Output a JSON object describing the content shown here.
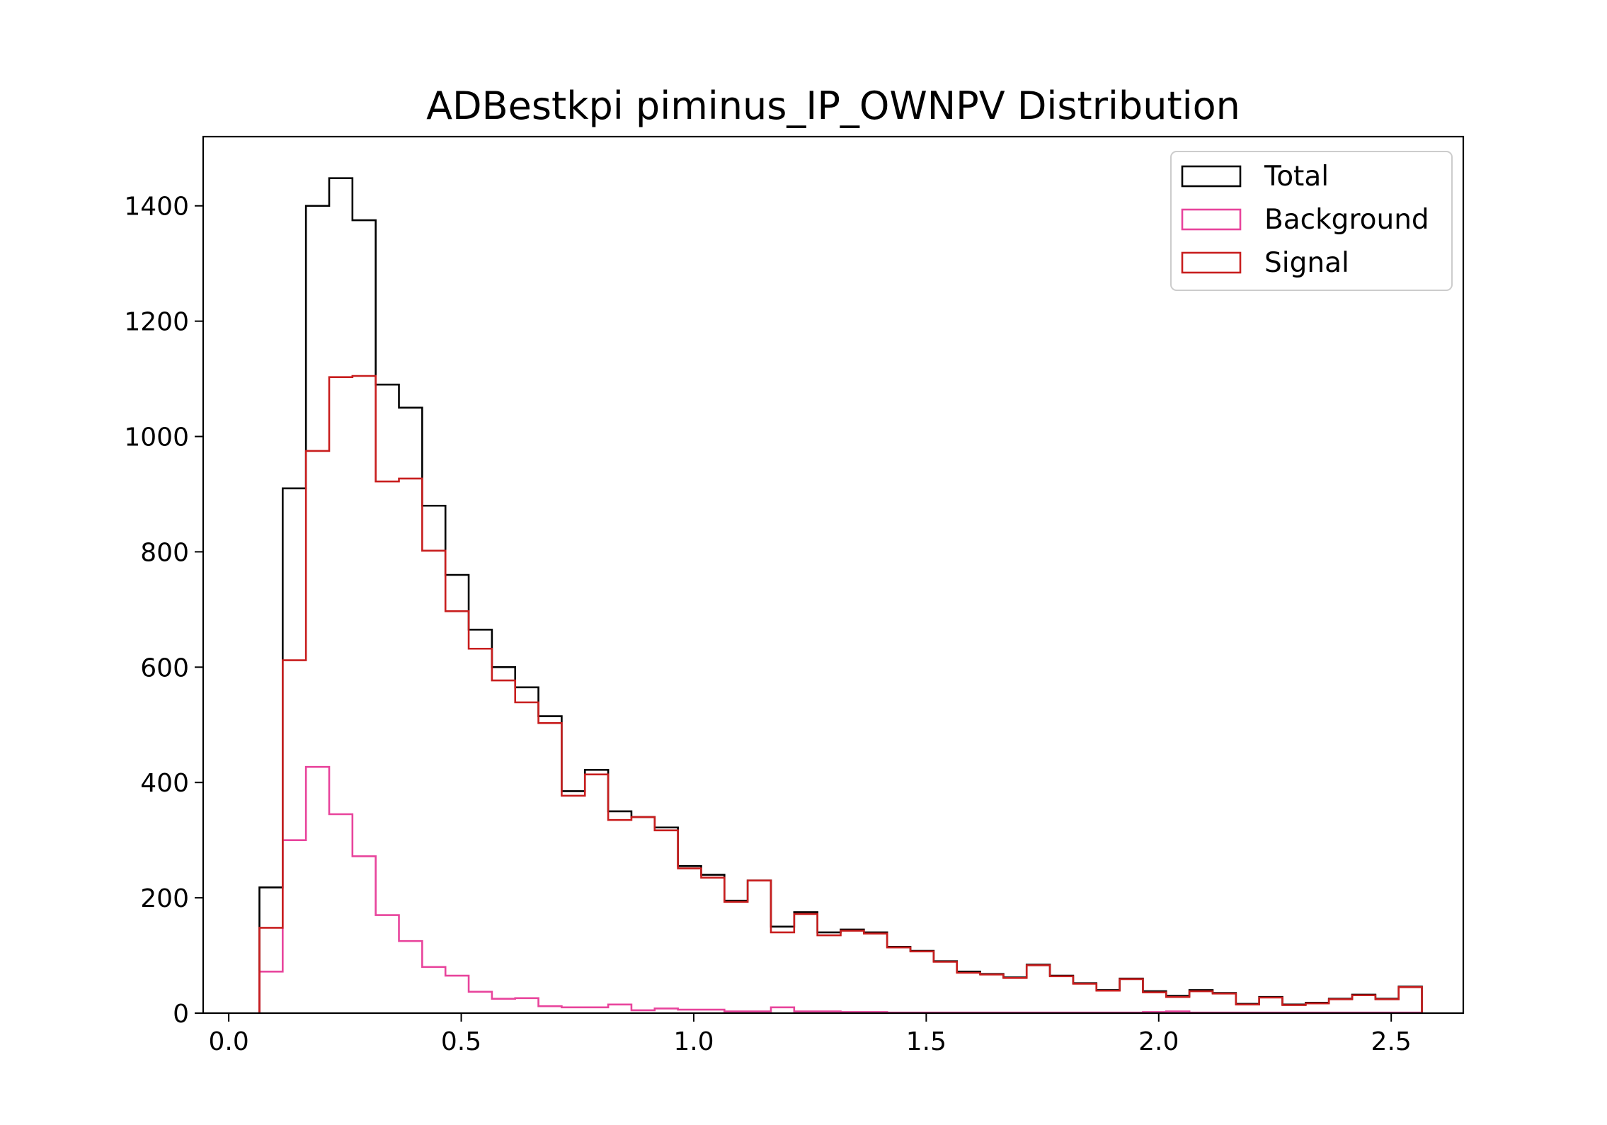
{
  "chart_data": {
    "type": "histogram",
    "title": "ADBestkpi piminus_IP_OWNPV Distribution",
    "xlabel": "",
    "ylabel": "",
    "xlim": [
      -0.055,
      2.655
    ],
    "ylim": [
      0,
      1520
    ],
    "xticks": [
      0.0,
      0.5,
      1.0,
      1.5,
      2.0,
      2.5
    ],
    "xtick_labels": [
      "0.0",
      "0.5",
      "1.0",
      "1.5",
      "2.0",
      "2.5"
    ],
    "yticks": [
      0,
      200,
      400,
      600,
      800,
      1000,
      1200,
      1400
    ],
    "ytick_labels": [
      "0",
      "200",
      "400",
      "600",
      "800",
      "1000",
      "1200",
      "1400"
    ],
    "grid": false,
    "legend_position": "top-right",
    "bin_edges": [
      0.066,
      0.116,
      0.166,
      0.216,
      0.266,
      0.316,
      0.366,
      0.416,
      0.466,
      0.516,
      0.566,
      0.616,
      0.666,
      0.716,
      0.766,
      0.816,
      0.866,
      0.916,
      0.966,
      1.016,
      1.066,
      1.116,
      1.166,
      1.216,
      1.266,
      1.316,
      1.366,
      1.416,
      1.466,
      1.516,
      1.566,
      1.616,
      1.666,
      1.716,
      1.766,
      1.816,
      1.866,
      1.916,
      1.966,
      2.016,
      2.066,
      2.116,
      2.166,
      2.216,
      2.266,
      2.316,
      2.366,
      2.416,
      2.466,
      2.516
    ],
    "series": [
      {
        "name": "Total",
        "color": "#000000",
        "values": [
          218,
          910,
          1400,
          1448,
          1375,
          1090,
          1050,
          880,
          760,
          665,
          600,
          565,
          515,
          385,
          422,
          350,
          340,
          322,
          255,
          240,
          195,
          230,
          150,
          175,
          140,
          145,
          140,
          115,
          108,
          90,
          72,
          68,
          62,
          84,
          65,
          52,
          40,
          60,
          38,
          30,
          40,
          35,
          16,
          28,
          15,
          18,
          25,
          32,
          25,
          46
        ]
      },
      {
        "name": "Background",
        "color": "#e8449c",
        "values": [
          72,
          300,
          427,
          345,
          272,
          170,
          125,
          80,
          65,
          37,
          25,
          26,
          12,
          10,
          10,
          15,
          5,
          8,
          6,
          6,
          3,
          3,
          10,
          3,
          3,
          2,
          2,
          1,
          1,
          1,
          1,
          1,
          1,
          1,
          1,
          1,
          1,
          1,
          2,
          3,
          1,
          1,
          1,
          1,
          1,
          1,
          1,
          1,
          1,
          1
        ]
      },
      {
        "name": "Signal",
        "color": "#c81e1e",
        "values": [
          148,
          612,
          975,
          1103,
          1105,
          922,
          927,
          802,
          697,
          632,
          577,
          539,
          503,
          377,
          414,
          335,
          340,
          317,
          251,
          235,
          193,
          230,
          140,
          172,
          135,
          143,
          138,
          114,
          107,
          89,
          70,
          67,
          61,
          83,
          64,
          51,
          39,
          59,
          36,
          28,
          38,
          34,
          15,
          27,
          14,
          17,
          24,
          31,
          24,
          45
        ]
      }
    ]
  }
}
